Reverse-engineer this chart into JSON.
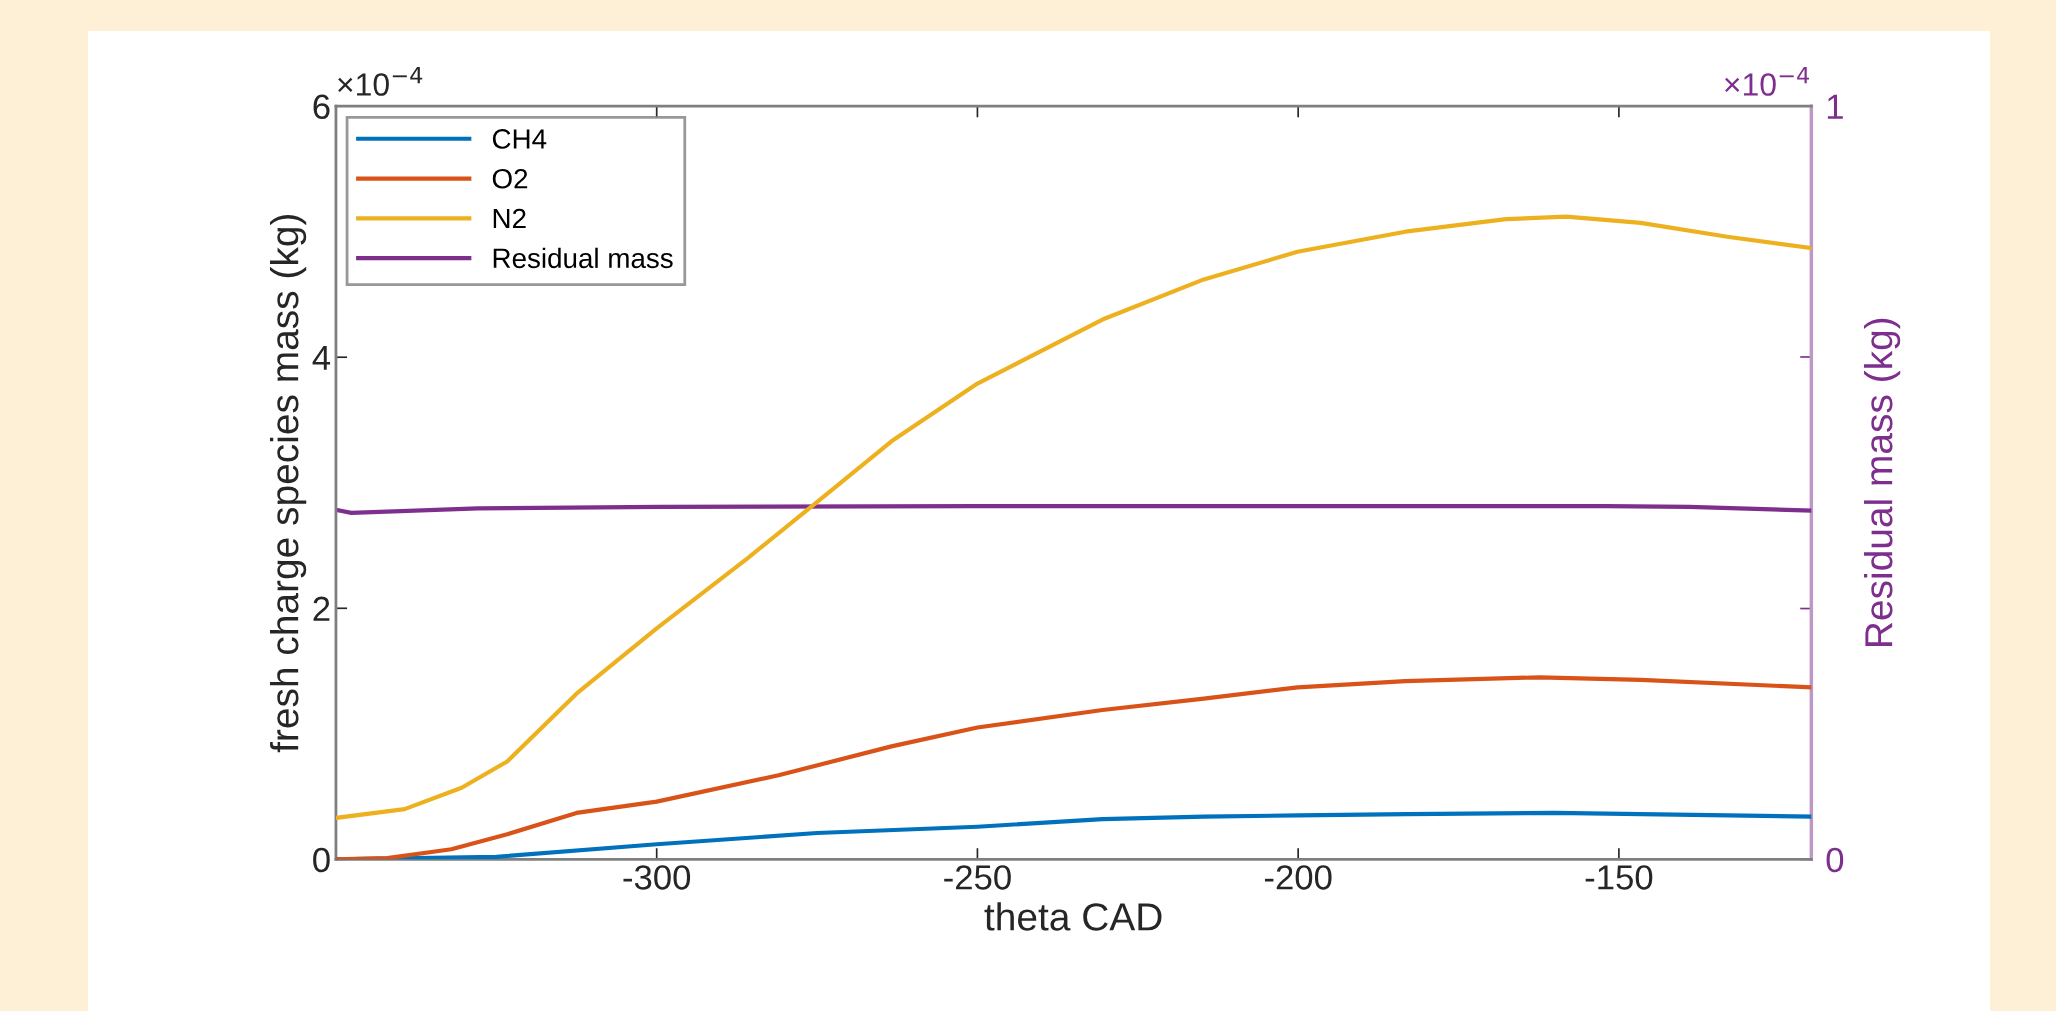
{
  "chart_data": {
    "type": "line",
    "xlabel": "theta CAD",
    "ylabel": "fresh charge species mass (kg)",
    "y2label": "Residual mass (kg)",
    "xlim": [
      -350,
      -120
    ],
    "xticks": [
      -300,
      -250,
      -200,
      -150
    ],
    "ylim": [
      0,
      6
    ],
    "yticks": [
      0,
      2,
      4,
      6
    ],
    "y2lim": [
      0,
      1
    ],
    "y2ticks": [
      0,
      {
        "value": 0.333,
        "label": null
      },
      {
        "value": 0.667,
        "label": null
      },
      1
    ],
    "legend": "top left",
    "grid": false,
    "line_style": "solid",
    "annotations": [
      "×10$^{−4}$",
      "×10$^{−4}$"
    ],
    "series": [
      {
        "name": "CH4",
        "color": "#0072bd",
        "x": [
          -350,
          -325,
          -300,
          -275,
          -250,
          -230.5,
          -214.7,
          -200,
          -183,
          -160,
          -146.6,
          -120
        ],
        "values": [
          0,
          0.02,
          0.12,
          0.21,
          0.26,
          0.32,
          0.34,
          0.35,
          0.36,
          0.37,
          0.36,
          0.34
        ]
      },
      {
        "name": "O2",
        "color": "#d95319",
        "x": [
          -350,
          -342,
          -332,
          -323.3,
          -312.5,
          -300,
          -281,
          -263.4,
          -250,
          -230.5,
          -214.7,
          -200.1,
          -183.3,
          -162.4,
          -146.6,
          -120
        ],
        "values": [
          0,
          0.01,
          0.08,
          0.2,
          0.37,
          0.46,
          0.67,
          0.9,
          1.05,
          1.19,
          1.28,
          1.37,
          1.42,
          1.45,
          1.43,
          1.37
        ]
      },
      {
        "name": "N2",
        "color": "#edb120",
        "x": [
          -350,
          -339.3,
          -330.4,
          -323.3,
          -312.5,
          -300,
          -285.8,
          -275.4,
          -263.4,
          -250,
          -230.5,
          -214.7,
          -200.1,
          -183.3,
          -167.6,
          -158.2,
          -146.6,
          -133.1,
          -120
        ],
        "values": [
          0.33,
          0.4,
          0.57,
          0.78,
          1.32,
          1.84,
          2.4,
          2.83,
          3.33,
          3.79,
          4.3,
          4.62,
          4.84,
          5.0,
          5.1,
          5.12,
          5.07,
          4.96,
          4.87
        ]
      },
      {
        "name": "Residual mass",
        "color": "#7e2f8e",
        "axis": "y2",
        "x": [
          -350,
          -347.6,
          -327.9,
          -299.5,
          -250,
          -200,
          -152,
          -139,
          -120
        ],
        "values": [
          0.464,
          0.46,
          0.466,
          0.468,
          0.469,
          0.469,
          0.469,
          0.468,
          0.463
        ]
      }
    ]
  }
}
